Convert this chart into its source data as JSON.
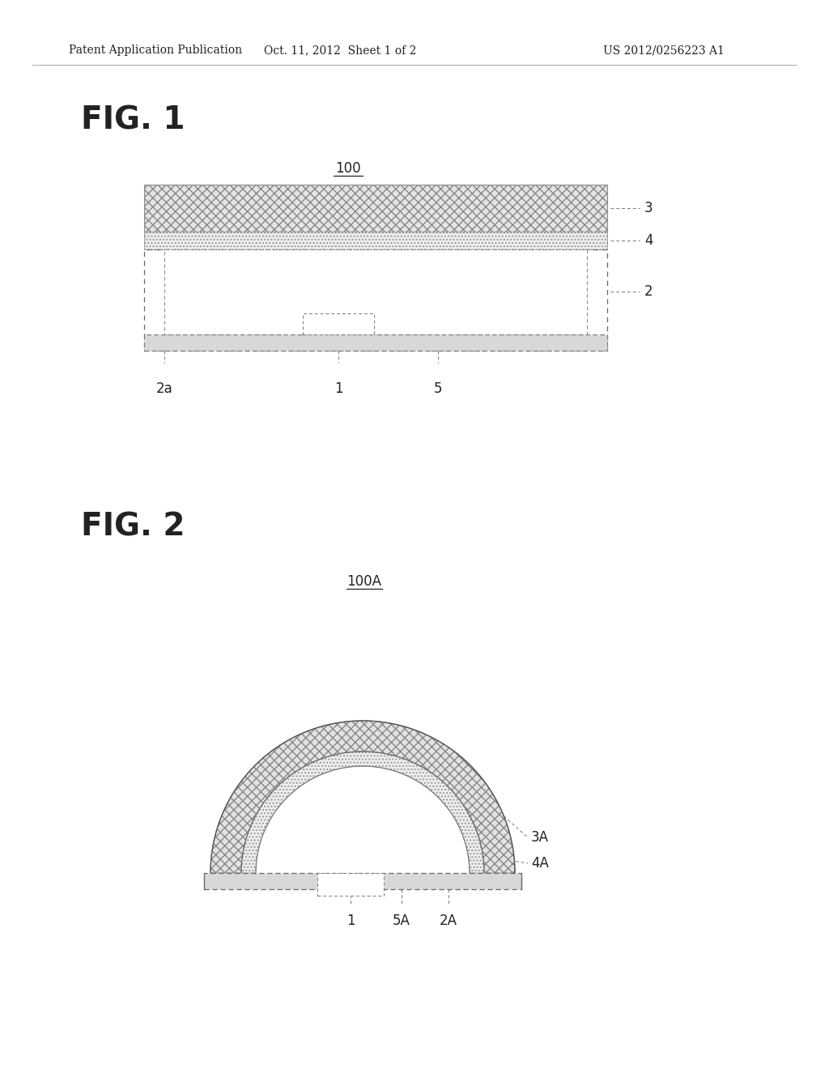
{
  "bg_color": "#ffffff",
  "header_left": "Patent Application Publication",
  "header_center": "Oct. 11, 2012  Sheet 1 of 2",
  "header_right": "US 2012/0256223 A1",
  "fig1_label": "FIG. 1",
  "fig2_label": "FIG. 2",
  "fig1_ref": "100",
  "fig2_ref": "100A",
  "text_color": "#222222",
  "line_color": "#444444",
  "dashed_color": "#777777",
  "hatch_color": "#bbbbbb",
  "header_fontsize": 10,
  "figlabel_fontsize": 28,
  "ref_fontsize": 12,
  "annot_fontsize": 12
}
